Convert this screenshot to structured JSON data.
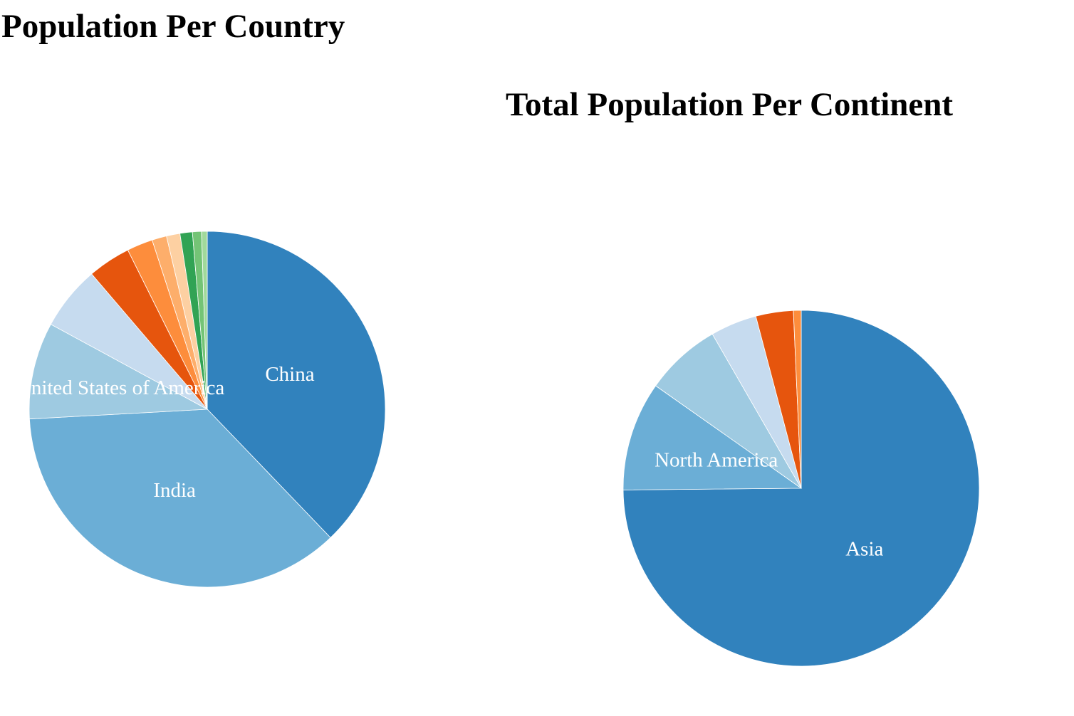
{
  "charts": {
    "country": {
      "title": "Population Per Country"
    },
    "continent": {
      "title": "Total Population Per Continent"
    }
  },
  "chart_data": [
    {
      "type": "pie",
      "title": "Population Per Country",
      "slices": [
        {
          "label": "China",
          "value": 37.0,
          "color": "#3182bd"
        },
        {
          "label": "India",
          "value": 35.5,
          "color": "#6baed6"
        },
        {
          "label": "United States of America",
          "value": 8.6,
          "color": "#9ecae1"
        },
        {
          "label": "",
          "value": 5.7,
          "color": "#c6dbef"
        },
        {
          "label": "",
          "value": 3.8,
          "color": "#e6550d"
        },
        {
          "label": "",
          "value": 2.3,
          "color": "#fd8d3c"
        },
        {
          "label": "",
          "value": 1.3,
          "color": "#fdae6b"
        },
        {
          "label": "",
          "value": 1.2,
          "color": "#fdd0a2"
        },
        {
          "label": "",
          "value": 1.1,
          "color": "#31a354"
        },
        {
          "label": "",
          "value": 0.8,
          "color": "#74c476"
        },
        {
          "label": "",
          "value": 0.5,
          "color": "#a1d99b"
        }
      ]
    },
    {
      "type": "pie",
      "title": "Total Population Per Continent",
      "slices": [
        {
          "label": "Asia",
          "value": 74.7,
          "color": "#3182bd"
        },
        {
          "label": "North America",
          "value": 9.9,
          "color": "#6baed6"
        },
        {
          "label": "",
          "value": 6.9,
          "color": "#9ecae1"
        },
        {
          "label": "",
          "value": 4.2,
          "color": "#c6dbef"
        },
        {
          "label": "",
          "value": 3.4,
          "color": "#e6550d"
        },
        {
          "label": "",
          "value": 0.7,
          "color": "#fd8d3c"
        }
      ]
    }
  ]
}
